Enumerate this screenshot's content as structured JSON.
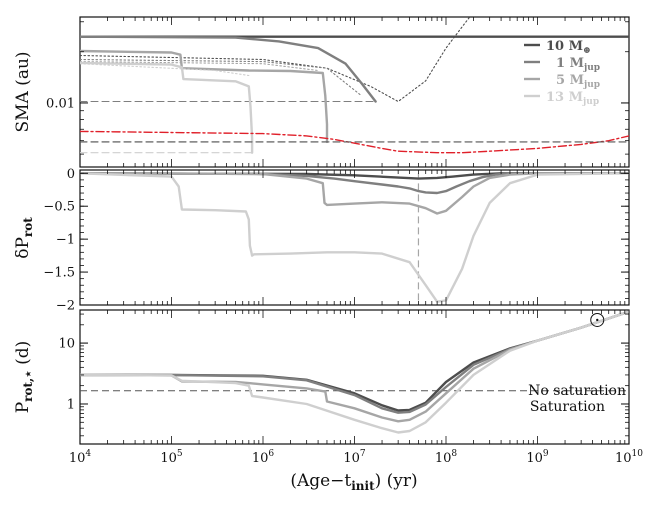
{
  "chart_data": {
    "type": "line",
    "xscale": "log",
    "xlim": [
      10000,
      10000000000
    ],
    "xlabel": "(Age−t",
    "xlabel_sub": "init",
    "xlabel_tail": ") (yr)",
    "x_ticks": [
      {
        "value": 10000,
        "base": "10",
        "exp": "4"
      },
      {
        "value": 100000,
        "base": "10",
        "exp": "5"
      },
      {
        "value": 1000000,
        "base": "10",
        "exp": "6"
      },
      {
        "value": 10000000,
        "base": "10",
        "exp": "7"
      },
      {
        "value": 100000000,
        "base": "10",
        "exp": "8"
      },
      {
        "value": 1000000000,
        "base": "10",
        "exp": "9"
      },
      {
        "value": 10000000000,
        "base": "10",
        "exp": "10"
      }
    ],
    "colors": {
      "10 M_earth": "#4d4d4d",
      "1 M_jup": "#7f7f7f",
      "5 M_jup": "#a6a6a6",
      "13 M_jup": "#cfcfcf",
      "corotation": "#e0202a",
      "dashed_ref": "#555555"
    },
    "legend": [
      {
        "key": "10 M_earth",
        "text": "10 M",
        "sub": "⊕"
      },
      {
        "key": "1 M_jup",
        "text": "1 M",
        "sub": "jup"
      },
      {
        "key": "5 M_jup",
        "text": "5 M",
        "sub": "jup"
      },
      {
        "key": "13 M_jup",
        "text": "13 M",
        "sub": "jup"
      }
    ],
    "panels": [
      {
        "id": "sma",
        "ylabel": "SMA (au)",
        "yscale": "log",
        "ylim": [
          0.0042,
          0.032
        ],
        "y_ticks": [
          {
            "value": 0.01,
            "label": "0.01"
          }
        ],
        "series": [
          {
            "name": "10 M_earth",
            "style": "solid",
            "x": [
              10000,
              10000000000
            ],
            "y": [
              0.0245,
              0.0245
            ]
          },
          {
            "name": "10 M_earth tide-only",
            "style": "dotted",
            "x": [
              10000,
              1000000,
              5000000,
              15000000,
              30000000,
              60000000,
              100000000,
              150000000,
              250000000
            ],
            "y": [
              0.019,
              0.018,
              0.016,
              0.0125,
              0.0102,
              0.0135,
              0.021,
              0.028,
              0.04
            ]
          },
          {
            "name": "1 M_jup",
            "style": "solid",
            "x": [
              10000,
              500000,
              1500000,
              4000000,
              8000000,
              12000000,
              17000000
            ],
            "y": [
              0.0245,
              0.0242,
              0.023,
              0.021,
              0.017,
              0.013,
              0.0102
            ]
          },
          {
            "name": "1 M_jup ref",
            "style": "dashed",
            "x": [
              10000,
              17000000
            ],
            "y": [
              0.0102,
              0.0102
            ]
          },
          {
            "name": "1 M_jup tide-only",
            "style": "dotted",
            "x": [
              10000,
              1000000,
              5000000,
              12000000
            ],
            "y": [
              0.018,
              0.0175,
              0.016,
              0.011
            ]
          },
          {
            "name": "5 M_jup",
            "style": "solid",
            "x": [
              10000,
              100000,
              125000,
              130000,
              700000,
              2000000,
              4500000,
              4800000,
              5000000,
              5000000
            ],
            "y": [
              0.0202,
              0.0198,
              0.0192,
              0.016,
              0.0155,
              0.0154,
              0.015,
              0.011,
              0.0075,
              0.0059
            ]
          },
          {
            "name": "5 M_jup ref",
            "style": "dashed",
            "x": [
              10000,
              5000000
            ],
            "y": [
              0.0059,
              0.0059
            ]
          },
          {
            "name": "5 M_jup tide-only",
            "style": "dotted",
            "x": [
              10000,
              1000000,
              4000000
            ],
            "y": [
              0.0175,
              0.017,
              0.0155
            ]
          },
          {
            "name": "13 M_jup",
            "style": "solid",
            "x": [
              10000,
              100000,
              130000,
              135000,
              500000,
              700000,
              730000,
              760000,
              760000
            ],
            "y": [
              0.0172,
              0.0168,
              0.0162,
              0.0138,
              0.0134,
              0.0125,
              0.0095,
              0.0062,
              0.0051
            ]
          },
          {
            "name": "13 M_jup ref",
            "style": "dashed",
            "x": [
              10000,
              760000
            ],
            "y": [
              0.0051,
              0.0051
            ]
          },
          {
            "name": "13 M_jup tide-only",
            "style": "dotted",
            "x": [
              10000,
              300000,
              700000
            ],
            "y": [
              0.017,
              0.0155,
              0.0145
            ]
          },
          {
            "name": "corotation",
            "style": "dashdot",
            "x": [
              10000,
              1000000,
              3000000,
              6000000,
              10000000,
              20000000,
              30000000,
              80000000,
              150000000,
              300000000,
              1000000000,
              3000000000,
              6000000000,
              10000000000
            ],
            "y": [
              0.0068,
              0.0066,
              0.0064,
              0.0061,
              0.0058,
              0.0054,
              0.0052,
              0.0051,
              0.0051,
              0.0052,
              0.0054,
              0.0057,
              0.006,
              0.0064
            ]
          },
          {
            "name": "corotation ref",
            "style": "dashed",
            "x": [
              10000,
              10000000000
            ],
            "y": [
              0.0059,
              0.0059
            ]
          }
        ]
      },
      {
        "id": "dprot",
        "ylabel": "δP",
        "ylabel_sub": "rot",
        "yscale": "linear",
        "ylim": [
          -2.0,
          0.05
        ],
        "y_ticks": [
          {
            "value": 0,
            "label": "0"
          },
          {
            "value": -0.5,
            "label": "−0.5"
          },
          {
            "value": -1,
            "label": "−1"
          },
          {
            "value": -1.5,
            "label": "−1.5"
          },
          {
            "value": -2,
            "label": "−2"
          }
        ],
        "vline": {
          "x": 50000000,
          "y_from": -1.93,
          "y_to": 0
        },
        "series": [
          {
            "name": "10 M_earth",
            "style": "solid",
            "x": [
              10000,
              3000000,
              10000000,
              25000000,
              50000000,
              80000000,
              120000000,
              200000000,
              400000000,
              10000000000
            ],
            "y": [
              0,
              -0.01,
              -0.03,
              -0.06,
              -0.08,
              -0.07,
              -0.05,
              -0.02,
              0,
              0
            ]
          },
          {
            "name": "1 M_jup",
            "style": "solid",
            "x": [
              10000,
              1000000,
              3000000,
              6000000,
              10000000,
              20000000,
              30000000,
              40000000,
              50000000,
              60000000,
              80000000,
              100000000,
              130000000,
              180000000,
              250000000,
              350000000,
              500000000,
              10000000000
            ],
            "y": [
              0,
              -0.01,
              -0.04,
              -0.08,
              -0.12,
              -0.17,
              -0.2,
              -0.23,
              -0.27,
              -0.29,
              -0.3,
              -0.27,
              -0.2,
              -0.12,
              -0.06,
              -0.02,
              0,
              0
            ]
          },
          {
            "name": "5 M_jup",
            "style": "solid",
            "x": [
              10000,
              1000000,
              3000000,
              4500000,
              4700000,
              5000000,
              10000000,
              20000000,
              40000000,
              60000000,
              80000000,
              100000000,
              150000000,
              200000000,
              300000000,
              500000000,
              1000000000,
              10000000000
            ],
            "y": [
              0,
              -0.01,
              -0.08,
              -0.15,
              -0.45,
              -0.48,
              -0.46,
              -0.44,
              -0.46,
              -0.53,
              -0.61,
              -0.57,
              -0.36,
              -0.2,
              -0.07,
              -0.02,
              0,
              0
            ]
          },
          {
            "name": "13 M_jup",
            "style": "solid",
            "x": [
              10000,
              100000,
              120000,
              130000,
              300000,
              650000,
              700000,
              720000,
              760000,
              800000,
              2000000,
              5000000,
              10000000,
              20000000,
              40000000,
              60000000,
              80000000,
              100000000,
              150000000,
              200000000,
              300000000,
              500000000,
              1000000000,
              10000000000
            ],
            "y": [
              0,
              -0.05,
              -0.2,
              -0.55,
              -0.56,
              -0.58,
              -0.7,
              -1.1,
              -1.25,
              -1.23,
              -1.22,
              -1.2,
              -1.2,
              -1.22,
              -1.35,
              -1.7,
              -1.95,
              -1.93,
              -1.45,
              -0.95,
              -0.45,
              -0.15,
              -0.02,
              0
            ]
          }
        ]
      },
      {
        "id": "prot",
        "ylabel": "P",
        "ylabel_sub": "rot,⋆",
        "ylabel_tail": " (d)",
        "yscale": "log",
        "ylim": [
          0.22,
          35
        ],
        "y_ticks": [
          {
            "value": 1,
            "label": "1"
          },
          {
            "value": 10,
            "label": "10"
          }
        ],
        "hline": {
          "y": 1.65,
          "label_above": "No saturation",
          "label_below": "Saturation"
        },
        "marker": {
          "x": 4500000000,
          "y": 24,
          "symbol": "sun"
        },
        "series": [
          {
            "name": "10 M_earth",
            "style": "solid",
            "x": [
              10000,
              100000,
              1000000,
              3000000,
              10000000,
              20000000,
              30000000,
              40000000,
              60000000,
              100000000,
              200000000,
              500000000,
              1000000000,
              3000000000,
              10000000000
            ],
            "y": [
              3.0,
              3.0,
              2.9,
              2.5,
              1.5,
              0.95,
              0.78,
              0.8,
              1.05,
              2.3,
              4.8,
              8.2,
              11,
              18,
              33
            ]
          },
          {
            "name": "1 M_jup",
            "style": "solid",
            "x": [
              10000,
              100000,
              1000000,
              3000000,
              10000000,
              20000000,
              30000000,
              40000000,
              60000000,
              100000000,
              200000000,
              500000000,
              1000000000,
              3000000000,
              10000000000
            ],
            "y": [
              3.0,
              2.98,
              2.85,
              2.45,
              1.4,
              0.85,
              0.72,
              0.74,
              0.98,
              1.9,
              4.4,
              8.0,
              11,
              18,
              33
            ]
          },
          {
            "name": "5 M_jup",
            "style": "solid",
            "x": [
              10000,
              100000,
              130000,
              500000,
              700000,
              1000000,
              3000000,
              4800000,
              5000000,
              10000000,
              20000000,
              30000000,
              40000000,
              60000000,
              100000000,
              200000000,
              500000000,
              1000000000,
              3000000000,
              10000000000
            ],
            "y": [
              3.0,
              2.95,
              2.35,
              2.3,
              2.2,
              2.1,
              1.8,
              1.6,
              1.1,
              0.85,
              0.6,
              0.52,
              0.55,
              0.75,
              1.5,
              3.8,
              7.8,
              11,
              18,
              33
            ]
          },
          {
            "name": "13 M_jup",
            "style": "solid",
            "x": [
              10000,
              100000,
              130000,
              500000,
              700000,
              760000,
              1000000,
              3000000,
              10000000,
              20000000,
              30000000,
              40000000,
              60000000,
              100000000,
              200000000,
              500000000,
              1000000000,
              3000000000,
              10000000000
            ],
            "y": [
              3.0,
              2.95,
              2.4,
              2.2,
              2.0,
              1.35,
              1.28,
              1.0,
              0.55,
              0.4,
              0.34,
              0.36,
              0.5,
              1.05,
              3.0,
              7.5,
              11,
              18,
              33
            ]
          }
        ]
      }
    ]
  }
}
